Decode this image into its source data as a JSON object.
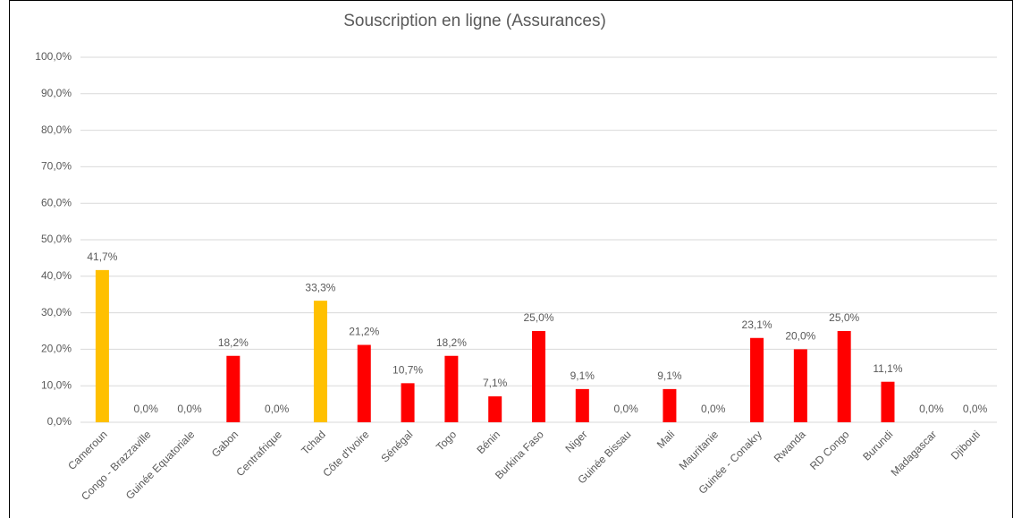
{
  "chart_data": {
    "type": "bar",
    "title": "Souscription en ligne (Assurances)",
    "categories": [
      "Cameroun",
      "Congo - Brazzaville",
      "Guinée Equatoriale",
      "Gabon",
      "Centrafrique",
      "Tchad",
      "Côte d'Ivoire",
      "Sénégal",
      "Togo",
      "Bénin",
      "Burkina Faso",
      "Niger",
      "Guinée Bissau",
      "Mali",
      "Mauritanie",
      "Guinée - Conakry",
      "Rwanda",
      "RD Congo",
      "Burundi",
      "Madagascar",
      "Djibouti"
    ],
    "values": [
      41.7,
      0,
      0,
      18.2,
      0,
      33.3,
      21.2,
      10.7,
      18.2,
      7.1,
      25.0,
      9.1,
      0,
      9.1,
      0,
      23.1,
      20.0,
      25.0,
      11.1,
      0,
      0
    ],
    "value_labels": [
      "41,7%",
      "0,0%",
      "0,0%",
      "18,2%",
      "0,0%",
      "33,3%",
      "21,2%",
      "10,7%",
      "18,2%",
      "7,1%",
      "25,0%",
      "9,1%",
      "0,0%",
      "9,1%",
      "0,0%",
      "23,1%",
      "20,0%",
      "25,0%",
      "11,1%",
      "0,0%",
      "0,0%"
    ],
    "colors": [
      "#FFC000",
      "#FF0000",
      "#FF0000",
      "#FF0000",
      "#FF0000",
      "#FFC000",
      "#FF0000",
      "#FF0000",
      "#FF0000",
      "#FF0000",
      "#FF0000",
      "#FF0000",
      "#FF0000",
      "#FF0000",
      "#FF0000",
      "#FF0000",
      "#FF0000",
      "#FF0000",
      "#FF0000",
      "#FF0000",
      "#FF0000"
    ],
    "ylim": [
      0,
      100
    ],
    "yticks": [
      {
        "value": 0,
        "label": "0,0%"
      },
      {
        "value": 10,
        "label": "10,0%"
      },
      {
        "value": 20,
        "label": "20,0%"
      },
      {
        "value": 30,
        "label": "30,0%"
      },
      {
        "value": 40,
        "label": "40,0%"
      },
      {
        "value": 50,
        "label": "50,0%"
      },
      {
        "value": 60,
        "label": "60,0%"
      },
      {
        "value": 70,
        "label": "70,0%"
      },
      {
        "value": 80,
        "label": "80,0%"
      },
      {
        "value": 90,
        "label": "90,0%"
      },
      {
        "value": 100,
        "label": "100,0%"
      }
    ],
    "grid": true
  }
}
